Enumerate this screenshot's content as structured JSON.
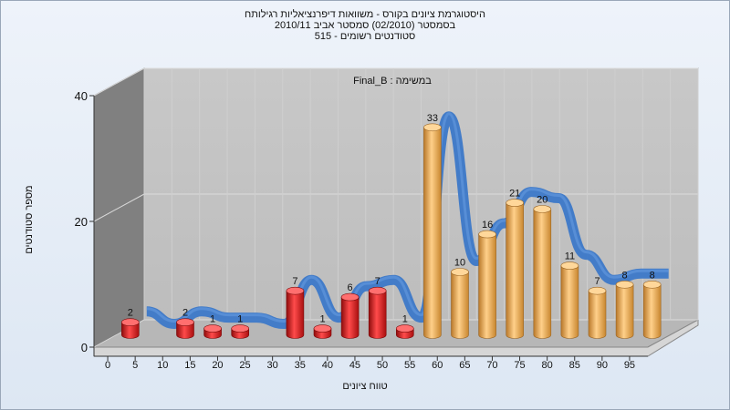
{
  "titles": {
    "line1": "היסטוגרמת ציונים בקורס - משוואות דיפרנציאליות רגילותח",
    "line2": "בסמסטר  (02/2010)  סמסטר אביב 2010/11",
    "line3": "סטודנטים רשומים - 515"
  },
  "chart_data": {
    "type": "bar",
    "annotation": "במשימה : Final_B",
    "xlabel": "טווח ציונים",
    "ylabel": "מספר סטודנטים",
    "ylim": [
      0,
      40
    ],
    "yticks": [
      "0",
      "20",
      "40"
    ],
    "categories": [
      "0",
      "5",
      "10",
      "15",
      "20",
      "25",
      "30",
      "35",
      "40",
      "45",
      "50",
      "55",
      "60",
      "65",
      "70",
      "75",
      "80",
      "85",
      "90",
      "95"
    ],
    "values": [
      2,
      null,
      2,
      1,
      1,
      null,
      7,
      1,
      6,
      7,
      1,
      33,
      10,
      16,
      21,
      20,
      11,
      7,
      8,
      8
    ],
    "fail_color": "#e41b1b",
    "pass_color": "#e9a84a",
    "curve_color": "#3c78c8",
    "grid": true
  }
}
